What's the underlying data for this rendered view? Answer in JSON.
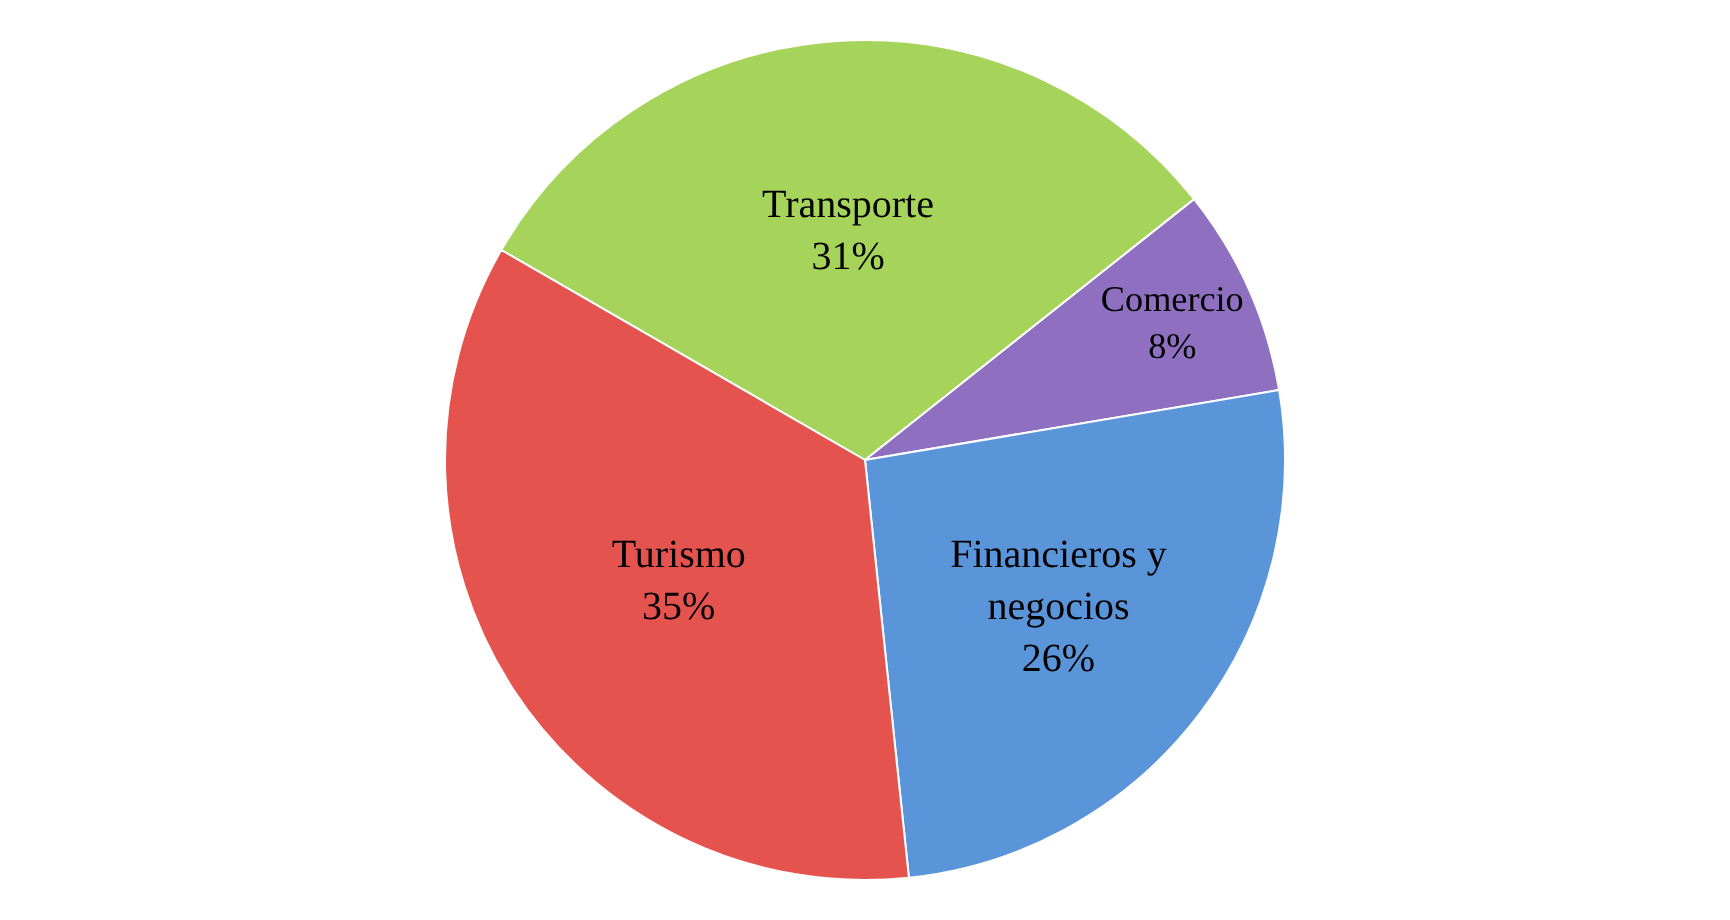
{
  "chart_data": {
    "type": "pie",
    "categories": [
      "Transporte",
      "Comercio",
      "Financieros y negocios",
      "Turismo"
    ],
    "values": [
      31,
      8,
      26,
      35
    ],
    "value_labels": [
      "31%",
      "8%",
      "26%",
      "35%"
    ],
    "colors": [
      "#a6d45a",
      "#8e6fc0",
      "#5b95d9",
      "#e5534f"
    ],
    "legend": false
  }
}
